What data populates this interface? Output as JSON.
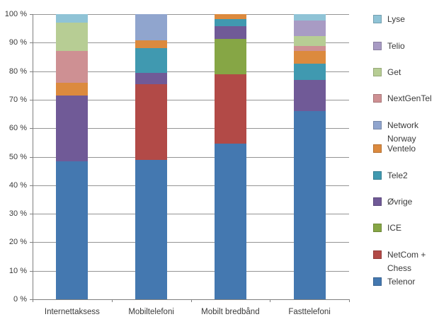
{
  "chart_data": {
    "type": "bar",
    "stacked": true,
    "title": "",
    "xlabel": "",
    "ylabel": "",
    "unit": "%",
    "categories": [
      "Internettaksess",
      "Mobiltelefoni",
      "Mobilt bredbånd",
      "Fasttelefoni"
    ],
    "ylim": [
      0,
      100
    ],
    "ytick_step": 10,
    "ytick_labels": [
      "0 %",
      "10 %",
      "20 %",
      "30 %",
      "40 %",
      "50 %",
      "60 %",
      "70 %",
      "80 %",
      "90 %",
      "100 %"
    ],
    "grid": true,
    "legend_position": "right",
    "stack_order": "bottom-to-top",
    "series": [
      {
        "name": "Telenor",
        "color": "#4478B0",
        "values": [
          48.5,
          49.0,
          54.5,
          66.0
        ]
      },
      {
        "name": "NetCom + Chess",
        "color": "#B24A47",
        "values": [
          0,
          26.5,
          24.5,
          0
        ]
      },
      {
        "name": "ICE",
        "color": "#86A645",
        "values": [
          0,
          0,
          12.2,
          0
        ]
      },
      {
        "name": "Øvrige",
        "color": "#705A97",
        "values": [
          23.0,
          4.0,
          4.6,
          11.0
        ]
      },
      {
        "name": "Tele2",
        "color": "#4099B0",
        "values": [
          0,
          8.7,
          2.4,
          5.6
        ]
      },
      {
        "name": "Ventelo",
        "color": "#DC8A3E",
        "values": [
          4.5,
          2.5,
          1.8,
          4.4
        ]
      },
      {
        "name": "Network Norway",
        "color": "#90A5CE",
        "values": [
          0,
          9.3,
          0,
          0
        ]
      },
      {
        "name": "NextGenTel",
        "color": "#CE9093",
        "values": [
          11.0,
          0,
          0,
          1.8
        ]
      },
      {
        "name": "Get",
        "color": "#B7CD94",
        "values": [
          10.0,
          0,
          0,
          3.6
        ]
      },
      {
        "name": "Telio",
        "color": "#A89BC4",
        "values": [
          0,
          0,
          0,
          5.4
        ]
      },
      {
        "name": "Lyse",
        "color": "#8FC3D6",
        "values": [
          3.0,
          0,
          0,
          2.2
        ]
      }
    ],
    "legend": [
      {
        "name": "Lyse",
        "lines": [
          "Lyse"
        ]
      },
      {
        "name": "Telio",
        "lines": [
          "Telio"
        ]
      },
      {
        "name": "Get",
        "lines": [
          "Get"
        ]
      },
      {
        "name": "NextGenTel",
        "lines": [
          "NextGenTel"
        ]
      },
      {
        "name": "Network Norway",
        "lines": [
          "Network",
          "Norway"
        ]
      },
      {
        "name": "Ventelo",
        "lines": [
          "Ventelo"
        ]
      },
      {
        "name": "Tele2",
        "lines": [
          "Tele2"
        ]
      },
      {
        "name": "Øvrige",
        "lines": [
          "Øvrige"
        ]
      },
      {
        "name": "ICE",
        "lines": [
          "ICE"
        ]
      },
      {
        "name": "NetCom + Chess",
        "lines": [
          "NetCom +",
          "Chess"
        ]
      },
      {
        "name": "Telenor",
        "lines": [
          "Telenor"
        ]
      }
    ]
  }
}
